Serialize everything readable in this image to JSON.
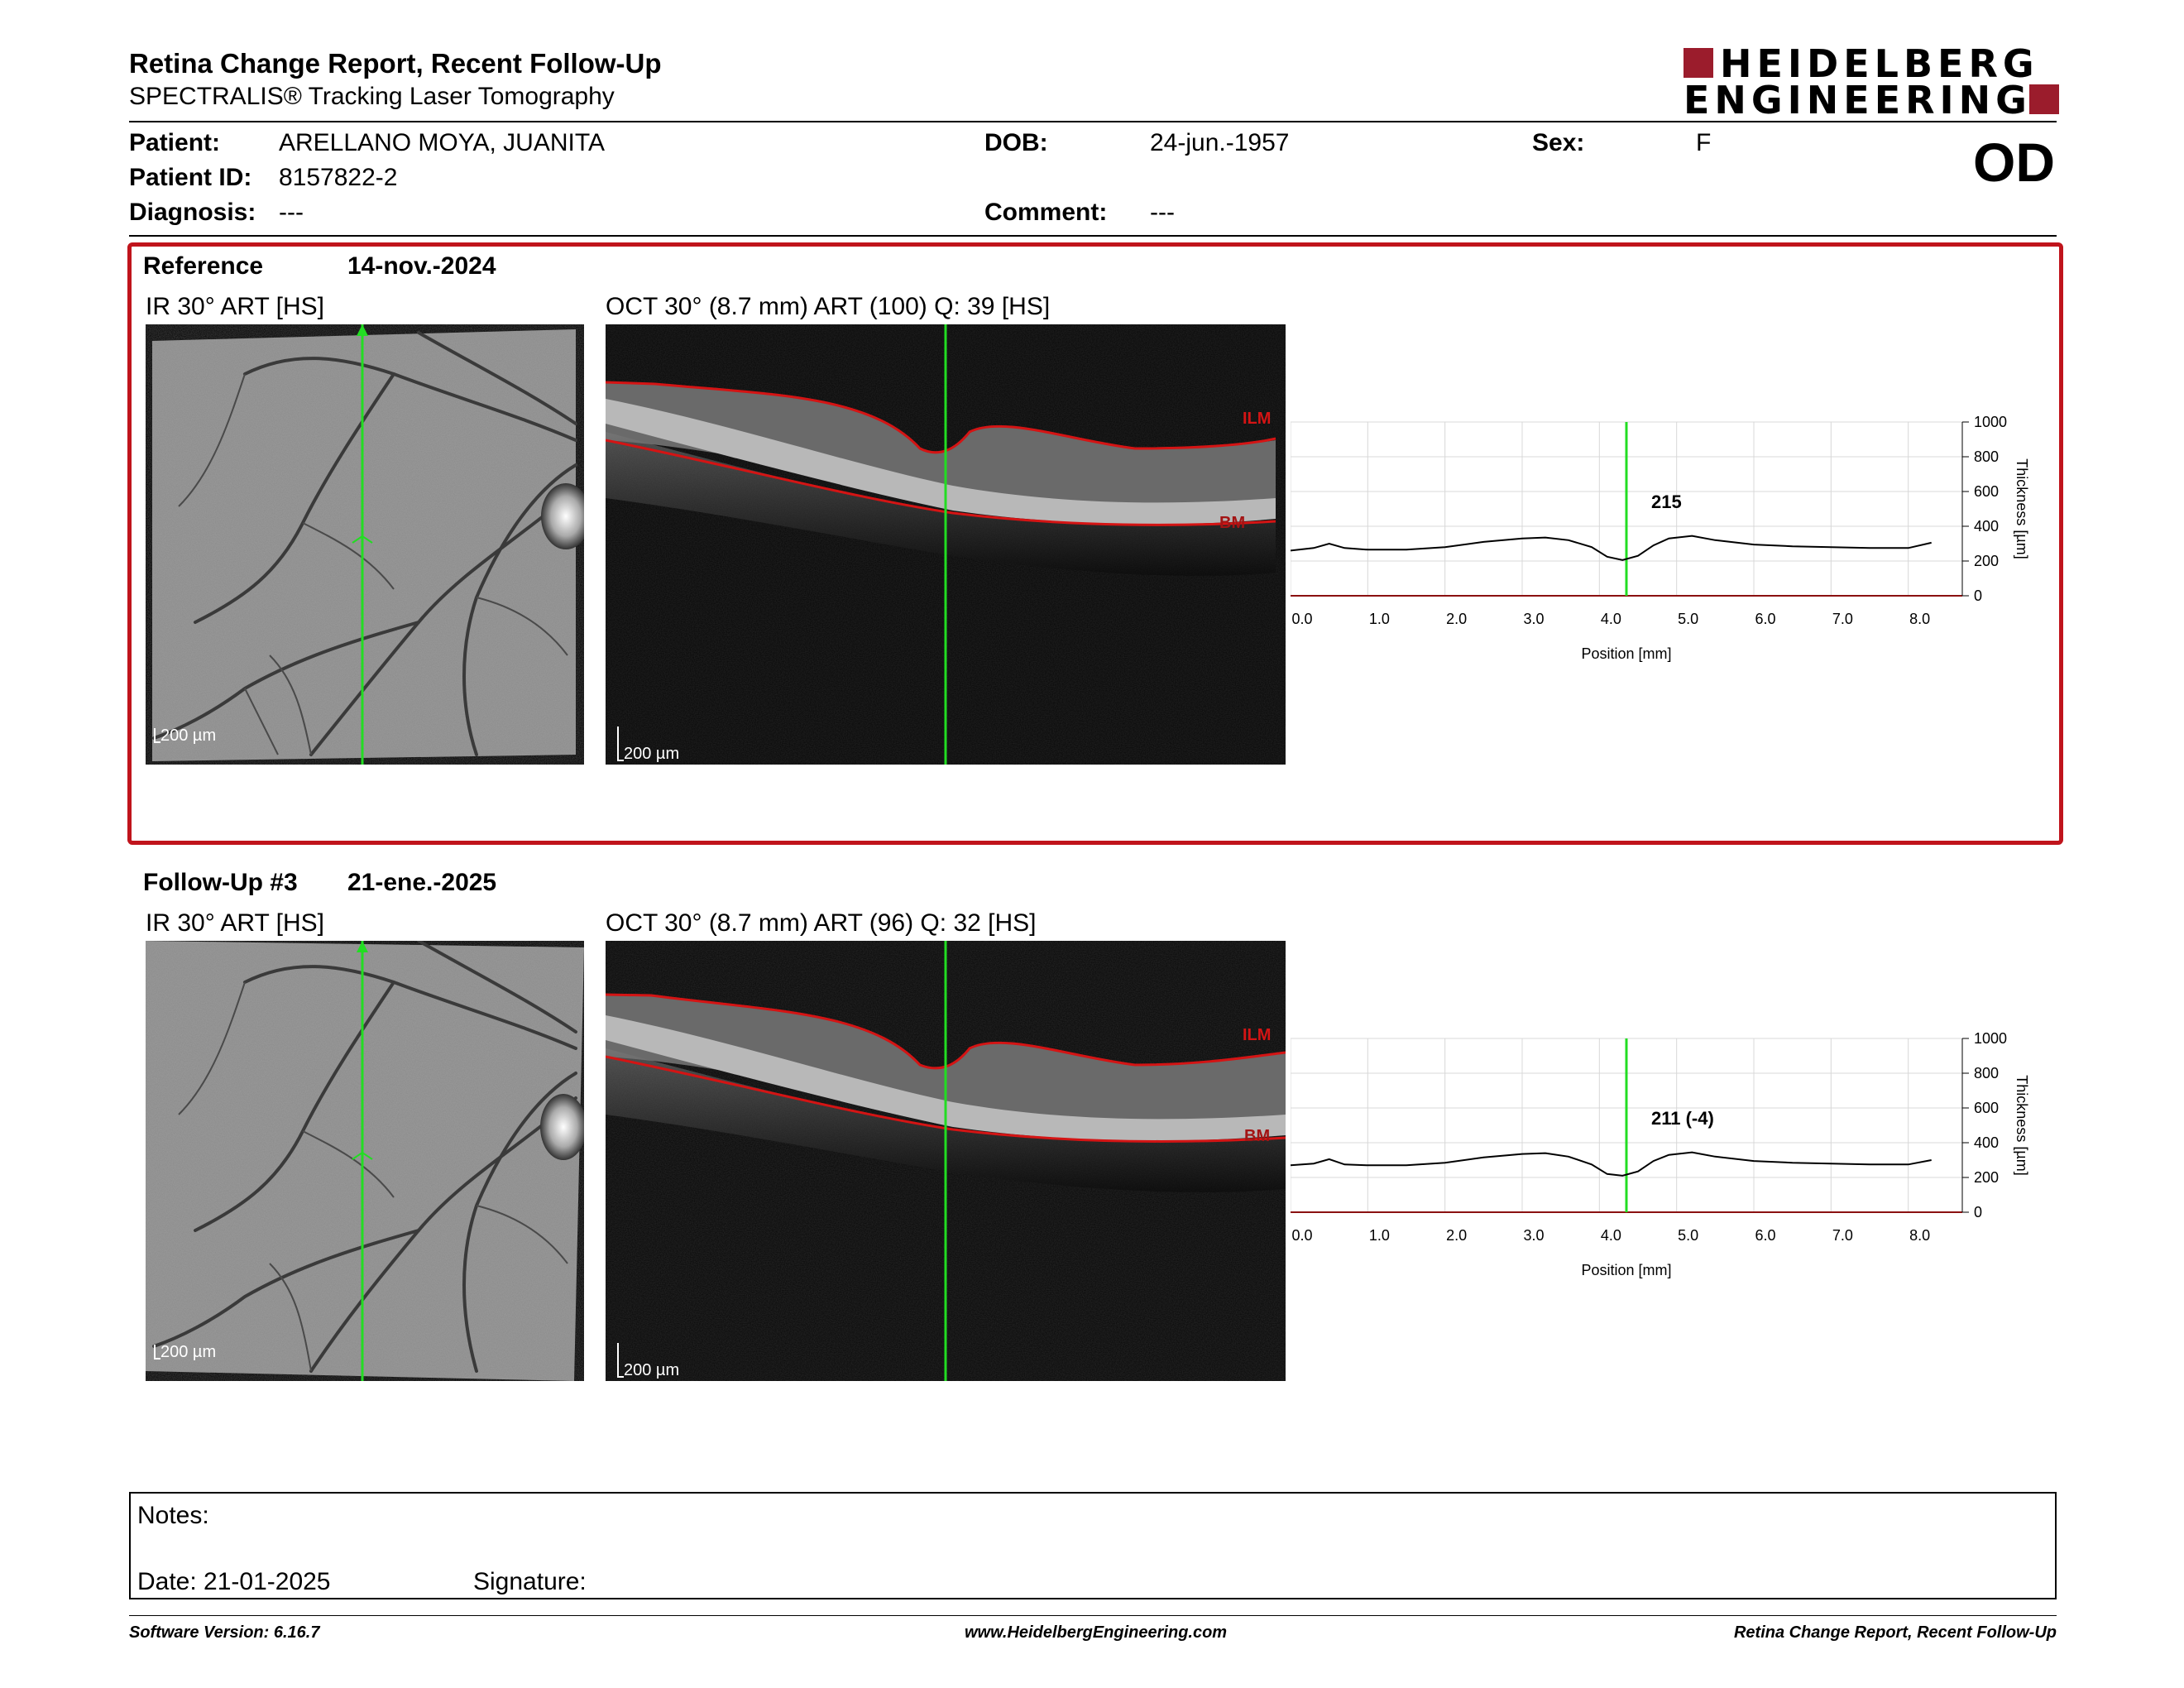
{
  "header": {
    "title": "Retina Change Report, Recent Follow-Up",
    "subtitle": "SPECTRALIS® Tracking Laser Tomography",
    "logo_line1": "HEIDELBERG",
    "logo_line2": "ENGINEERING",
    "eye": "OD"
  },
  "patient": {
    "patient_label": "Patient:",
    "patient_value": "ARELLANO MOYA, JUANITA",
    "id_label": "Patient ID:",
    "id_value": "8157822-2",
    "diagnosis_label": "Diagnosis:",
    "diagnosis_value": "---",
    "dob_label": "DOB:",
    "dob_value": "24-jun.-1957",
    "comment_label": "Comment:",
    "comment_value": "---",
    "sex_label": "Sex:",
    "sex_value": "F"
  },
  "sections": [
    {
      "name": "Reference",
      "date": "14-nov.-2024",
      "ir_label": "IR 30° ART [HS]",
      "oct_label": "OCT 30° (8.7 mm) ART (100) Q: 39 [HS]",
      "scale_label": "200 µm",
      "ilm_label": "ILM",
      "bm_label": "BM",
      "value_label": "215"
    },
    {
      "name": "Follow-Up #3",
      "date": "21-ene.-2025",
      "ir_label": "IR 30° ART [HS]",
      "oct_label": "OCT 30° (8.7 mm) ART (96) Q: 32 [HS]",
      "scale_label": "200 µm",
      "ilm_label": "ILM",
      "bm_label": "BM",
      "value_label": "211 (-4)"
    }
  ],
  "chart_data": [
    {
      "type": "line",
      "xlabel": "Position [mm]",
      "ylabel": "Thickness [µm]",
      "xlim": [
        0,
        8.7
      ],
      "ylim": [
        0,
        1000
      ],
      "xticks": [
        "0.0",
        "1.0",
        "2.0",
        "3.0",
        "4.0",
        "5.0",
        "6.0",
        "7.0",
        "8.0"
      ],
      "yticks": [
        "0",
        "200",
        "400",
        "600",
        "800",
        "1000"
      ],
      "cursor_x": 4.35,
      "cursor_value": "215",
      "series": [
        {
          "x": [
            0.0,
            0.3,
            0.5,
            0.7,
            1.0,
            1.5,
            2.0,
            2.5,
            3.0,
            3.3,
            3.6,
            3.9,
            4.1,
            4.3,
            4.5,
            4.7,
            4.9,
            5.2,
            5.5,
            6.0,
            6.5,
            7.0,
            7.5,
            8.0,
            8.3
          ],
          "y": [
            260,
            275,
            300,
            275,
            265,
            265,
            280,
            310,
            330,
            335,
            320,
            280,
            225,
            205,
            230,
            290,
            330,
            345,
            320,
            295,
            285,
            280,
            275,
            275,
            305
          ]
        }
      ]
    },
    {
      "type": "line",
      "xlabel": "Position [mm]",
      "ylabel": "Thickness [µm]",
      "xlim": [
        0,
        8.7
      ],
      "ylim": [
        0,
        1000
      ],
      "xticks": [
        "0.0",
        "1.0",
        "2.0",
        "3.0",
        "4.0",
        "5.0",
        "6.0",
        "7.0",
        "8.0"
      ],
      "yticks": [
        "0",
        "200",
        "400",
        "600",
        "800",
        "1000"
      ],
      "cursor_x": 4.35,
      "cursor_value": "211 (-4)",
      "series": [
        {
          "x": [
            0.0,
            0.3,
            0.5,
            0.7,
            1.0,
            1.5,
            2.0,
            2.5,
            3.0,
            3.3,
            3.6,
            3.9,
            4.1,
            4.3,
            4.5,
            4.7,
            4.9,
            5.2,
            5.5,
            6.0,
            6.5,
            7.0,
            7.5,
            8.0,
            8.3
          ],
          "y": [
            270,
            280,
            305,
            275,
            270,
            270,
            285,
            315,
            335,
            340,
            320,
            275,
            220,
            210,
            235,
            295,
            330,
            345,
            320,
            295,
            285,
            280,
            275,
            275,
            300
          ]
        }
      ]
    }
  ],
  "notes": {
    "notes_label": "Notes:",
    "date_label": "Date: 21-01-2025",
    "signature_label": "Signature:"
  },
  "footer": {
    "software": "Software Version: 6.16.7",
    "website": "www.HeidelbergEngineering.com",
    "report_name": "Retina Change Report, Recent Follow-Up"
  },
  "colors": {
    "accent_red": "#c0141c",
    "logo_red": "#9b1c2c",
    "cursor_green": "#22dd22"
  }
}
